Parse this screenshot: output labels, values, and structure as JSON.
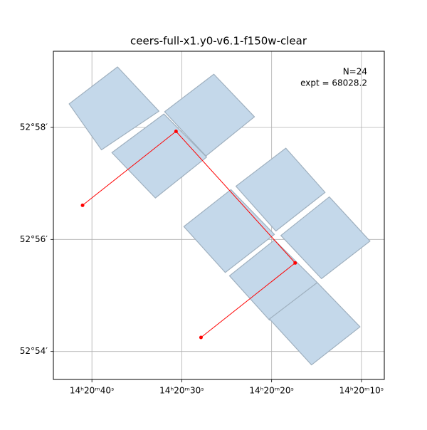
{
  "chart_data": {
    "type": "footprint",
    "title": "ceers-full-x1.y0-v6.1-f150w-clear",
    "annotations": [
      "N=24",
      "expt = 68028.2"
    ],
    "xlim": [
      44.29,
      7.46
    ],
    "ylim": [
      53.5,
      59.36
    ],
    "xticks": [
      {
        "value": 40,
        "label": "14ʰ20ᵐ40ˢ"
      },
      {
        "value": 30,
        "label": "14ʰ20ᵐ30ˢ"
      },
      {
        "value": 20,
        "label": "14ʰ20ᵐ20ˢ"
      },
      {
        "value": 10,
        "label": "14ʰ20ᵐ10ˢ"
      }
    ],
    "yticks": [
      {
        "value": 58,
        "label": "52°58′"
      },
      {
        "value": 56,
        "label": "52°56′"
      },
      {
        "value": 54,
        "label": "52°54′"
      }
    ],
    "grid": true,
    "footprint_color": "#c4d8ea",
    "footprints": [
      {
        "x": [
          42.54,
          37.15,
          32.54,
          38.94
        ],
        "y": [
          58.42,
          59.08,
          58.29,
          57.6
        ]
      },
      {
        "x": [
          37.78,
          31.99,
          27.23,
          32.94
        ],
        "y": [
          57.55,
          58.24,
          57.47,
          56.74
        ]
      },
      {
        "x": [
          31.91,
          26.43,
          21.91,
          27.31
        ],
        "y": [
          58.28,
          58.95,
          58.19,
          57.49
        ]
      },
      {
        "x": [
          23.97,
          18.42,
          14.05,
          19.53
        ],
        "y": [
          56.95,
          57.63,
          56.84,
          56.15
        ]
      },
      {
        "x": [
          29.77,
          24.53,
          19.69,
          25.16
        ],
        "y": [
          56.23,
          56.89,
          56.09,
          55.41
        ]
      },
      {
        "x": [
          18.97,
          13.58,
          9.05,
          14.45
        ],
        "y": [
          56.07,
          56.76,
          55.97,
          55.3
        ]
      },
      {
        "x": [
          24.69,
          19.69,
          14.92,
          20.24
        ],
        "y": [
          55.35,
          55.99,
          55.23,
          54.56
        ]
      },
      {
        "x": [
          20.24,
          14.92,
          10.16,
          15.56
        ],
        "y": [
          54.58,
          55.23,
          54.44,
          53.76
        ]
      }
    ],
    "path": {
      "color": "#ff0000",
      "x": [
        41.04,
        30.64,
        17.38,
        27.86
      ],
      "y": [
        56.61,
        57.93,
        55.58,
        54.25
      ]
    }
  }
}
